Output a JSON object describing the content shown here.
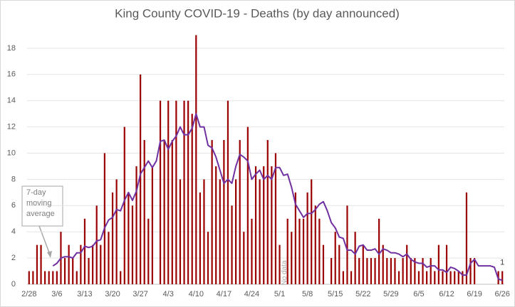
{
  "chart_data": {
    "type": "bar",
    "title": "King County COVID-19 - Deaths (by day announced)",
    "categories": [
      "2/28",
      null,
      null,
      null,
      null,
      null,
      null,
      "3/6",
      null,
      null,
      null,
      null,
      null,
      null,
      "3/13",
      null,
      null,
      null,
      null,
      null,
      null,
      "3/20",
      null,
      null,
      null,
      null,
      null,
      null,
      "3/27",
      null,
      null,
      null,
      null,
      null,
      null,
      "4/3",
      null,
      null,
      null,
      null,
      null,
      null,
      "4/10",
      null,
      null,
      null,
      null,
      null,
      null,
      "4/17",
      null,
      null,
      null,
      null,
      null,
      null,
      "4/24",
      null,
      null,
      null,
      null,
      null,
      null,
      "5/1",
      null,
      null,
      null,
      null,
      null,
      null,
      "5/8",
      null,
      null,
      null,
      null,
      null,
      null,
      "5/15",
      null,
      null,
      null,
      null,
      null,
      null,
      "5/22",
      null,
      null,
      null,
      null,
      null,
      null,
      "5/29",
      null,
      null,
      null,
      null,
      null,
      null,
      "6/5",
      null,
      null,
      null,
      null,
      null,
      null,
      "6/12",
      null,
      null,
      null,
      null,
      null,
      null,
      "6/19",
      null,
      null,
      null,
      null,
      null,
      null,
      "6/26"
    ],
    "series": [
      {
        "type": "bar",
        "color": "#9b0000",
        "values": [
          1,
          1,
          3,
          3,
          1,
          1,
          1,
          1,
          4,
          2,
          3,
          2,
          1,
          3,
          5,
          2,
          3,
          6,
          3,
          10,
          4,
          7,
          8,
          1,
          12,
          7,
          6,
          9,
          16,
          11,
          5,
          9,
          0,
          14,
          11,
          14,
          11,
          14,
          8,
          14,
          14,
          13,
          19,
          7,
          8,
          4,
          11,
          9,
          8,
          11,
          14,
          6,
          8,
          11,
          4,
          12,
          5,
          9,
          8,
          9,
          11,
          9,
          10,
          3,
          0,
          5,
          4,
          7,
          5,
          5,
          7,
          8,
          6,
          5,
          3,
          0,
          2,
          4,
          3,
          1,
          6,
          1,
          4,
          2,
          3,
          2,
          2,
          2,
          5,
          3,
          2,
          2,
          2,
          1,
          2,
          3,
          2,
          2,
          1,
          2,
          1,
          2,
          1,
          3,
          1,
          3,
          1,
          1,
          1,
          1,
          7,
          2,
          2,
          0,
          0,
          0,
          0,
          0,
          1,
          1
        ]
      },
      {
        "type": "line",
        "name": "7-day moving average",
        "color": "#7030a0",
        "values": [
          null,
          null,
          null,
          null,
          null,
          null,
          1.4,
          1.6,
          2.0,
          2.1,
          2.1,
          2.0,
          2.4,
          2.4,
          2.9,
          2.8,
          2.9,
          3.3,
          3.4,
          4.3,
          4.9,
          5.1,
          5.7,
          5.6,
          6.4,
          7.0,
          6.4,
          7.1,
          8.4,
          8.9,
          9.4,
          8.9,
          9.4,
          10.9,
          11.0,
          10.3,
          10.9,
          11.3,
          12.0,
          11.4,
          11.4,
          11.9,
          13.0,
          12.0,
          12.0,
          10.6,
          10.4,
          9.7,
          8.7,
          7.7,
          8.0,
          7.7,
          9.0,
          9.9,
          9.7,
          9.4,
          8.0,
          8.4,
          8.7,
          8.0,
          8.3,
          8.0,
          8.9,
          8.9,
          8.3,
          8.4,
          7.4,
          6.1,
          5.6,
          5.1,
          5.4,
          5.4,
          5.7,
          6.1,
          6.3,
          5.6,
          4.7,
          4.3,
          3.6,
          3.5,
          2.6,
          2.6,
          2.3,
          2.9,
          3.0,
          2.6,
          2.6,
          2.7,
          2.3,
          2.7,
          2.6,
          2.4,
          2.4,
          2.3,
          2.1,
          2.3,
          1.9,
          1.7,
          1.6,
          1.6,
          1.3,
          1.4,
          1.4,
          1.1,
          1.1,
          0.9,
          1.3,
          1.2,
          1.0,
          0.7,
          0.7,
          1.6,
          1.9,
          1.4,
          1.4,
          1.4,
          1.4,
          1.3,
          0.4,
          0.3
        ]
      }
    ],
    "ylim": [
      0,
      20
    ],
    "yticks": [
      0,
      2,
      4,
      6,
      8,
      10,
      12,
      14,
      16,
      18
    ],
    "grid": true,
    "annotations": [
      "No data"
    ]
  }
}
